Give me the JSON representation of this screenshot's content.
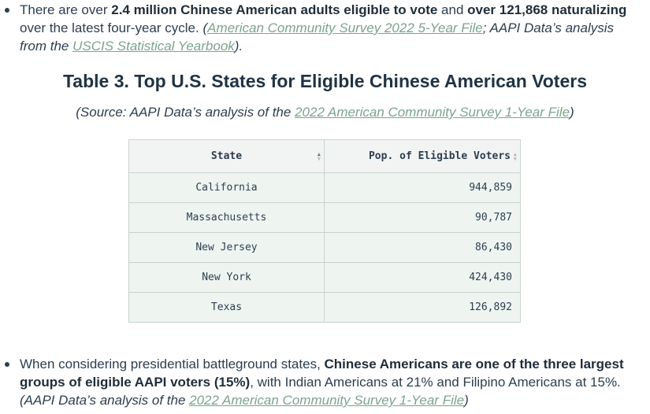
{
  "bullets": [
    {
      "t1": "There are over ",
      "b1": "2.4 million Chinese American adults eligible to vote",
      "t2": " and ",
      "b2": "over 121,868 naturalizing",
      "t3": " over the latest four-year cycle. ",
      "i1": "(",
      "link1": "American Community Survey 2022 5-Year File",
      "i2": "; AAPI Data’s analysis from the ",
      "link2": "USCIS Statistical Yearbook",
      "i3": ")."
    },
    {
      "t1": "When considering presidential battleground states, ",
      "b1": "Chinese Americans are one of the three largest groups of eligible AAPI voters (15%)",
      "t2": ", with Indian Americans at 21% and Filipino Americans at 15%. ",
      "i1": "(AAPI Data’s analysis of the ",
      "link1": "2022 American Community Survey 1-Year File",
      "i2": ")"
    }
  ],
  "table": {
    "title": "Table 3. Top U.S. States for Eligible Chinese American Voters",
    "source_prefix": "(Source: AAPI Data’s analysis of the ",
    "source_link": "2022 American Community Survey 1-Year File",
    "source_suffix": ")",
    "headers": {
      "state": "State",
      "pop": "Pop. of Eligible Voters"
    },
    "rows": [
      {
        "state": "California",
        "pop": "944,859"
      },
      {
        "state": "Massachusetts",
        "pop": "90,787"
      },
      {
        "state": "New Jersey",
        "pop": "86,430"
      },
      {
        "state": "New York",
        "pop": "424,430"
      },
      {
        "state": "Texas",
        "pop": "126,892"
      }
    ]
  },
  "icons": {
    "bullet": "bullet-dot",
    "sort": "sort-arrows-icon"
  },
  "colors": {
    "link": "#7ba38f",
    "text": "#2c3e50",
    "row_bg": "#eef5f1",
    "header_bg": "#f2f4f3"
  }
}
